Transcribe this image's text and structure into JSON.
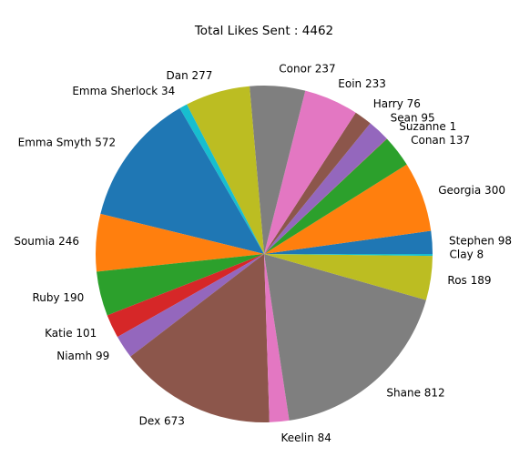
{
  "chart_data": {
    "type": "pie",
    "title": "Total Likes Sent : 4462",
    "start_angle_deg": 0,
    "direction": "counterclockwise",
    "slices": [
      {
        "label": "Stephen 98",
        "name": "Stephen",
        "value": 98,
        "color": "#1f77b4"
      },
      {
        "label": "Georgia 300",
        "name": "Georgia",
        "value": 300,
        "color": "#ff7f0e"
      },
      {
        "label": "Conan 137",
        "name": "Conan",
        "value": 137,
        "color": "#2ca02c"
      },
      {
        "label": "Suzanne 1",
        "name": "Suzanne",
        "value": 1,
        "color": "#d62728"
      },
      {
        "label": "Sean 95",
        "name": "Sean",
        "value": 95,
        "color": "#9467bd"
      },
      {
        "label": "Harry 76",
        "name": "Harry",
        "value": 76,
        "color": "#8c564b"
      },
      {
        "label": "Eoin 233",
        "name": "Eoin",
        "value": 233,
        "color": "#e377c2"
      },
      {
        "label": "Conor 237",
        "name": "Conor",
        "value": 237,
        "color": "#7f7f7f"
      },
      {
        "label": "Dan 277",
        "name": "Dan",
        "value": 277,
        "color": "#bcbd22"
      },
      {
        "label": "Emma Sherlock 34",
        "name": "Emma Sherlock",
        "value": 34,
        "color": "#17becf"
      },
      {
        "label": "Emma Smyth 572",
        "name": "Emma Smyth",
        "value": 572,
        "color": "#1f77b4"
      },
      {
        "label": "Soumia 246",
        "name": "Soumia",
        "value": 246,
        "color": "#ff7f0e"
      },
      {
        "label": "Ruby 190",
        "name": "Ruby",
        "value": 190,
        "color": "#2ca02c"
      },
      {
        "label": "Katie 101",
        "name": "Katie",
        "value": 101,
        "color": "#d62728"
      },
      {
        "label": "Niamh 99",
        "name": "Niamh",
        "value": 99,
        "color": "#9467bd"
      },
      {
        "label": "Dex 673",
        "name": "Dex",
        "value": 673,
        "color": "#8c564b"
      },
      {
        "label": "Keelin 84",
        "name": "Keelin",
        "value": 84,
        "color": "#e377c2"
      },
      {
        "label": "Shane 812",
        "name": "Shane",
        "value": 812,
        "color": "#7f7f7f"
      },
      {
        "label": "Ros 189",
        "name": "Ros",
        "value": 189,
        "color": "#bcbd22"
      },
      {
        "label": "Clay 8",
        "name": "Clay",
        "value": 8,
        "color": "#17becf"
      }
    ]
  }
}
